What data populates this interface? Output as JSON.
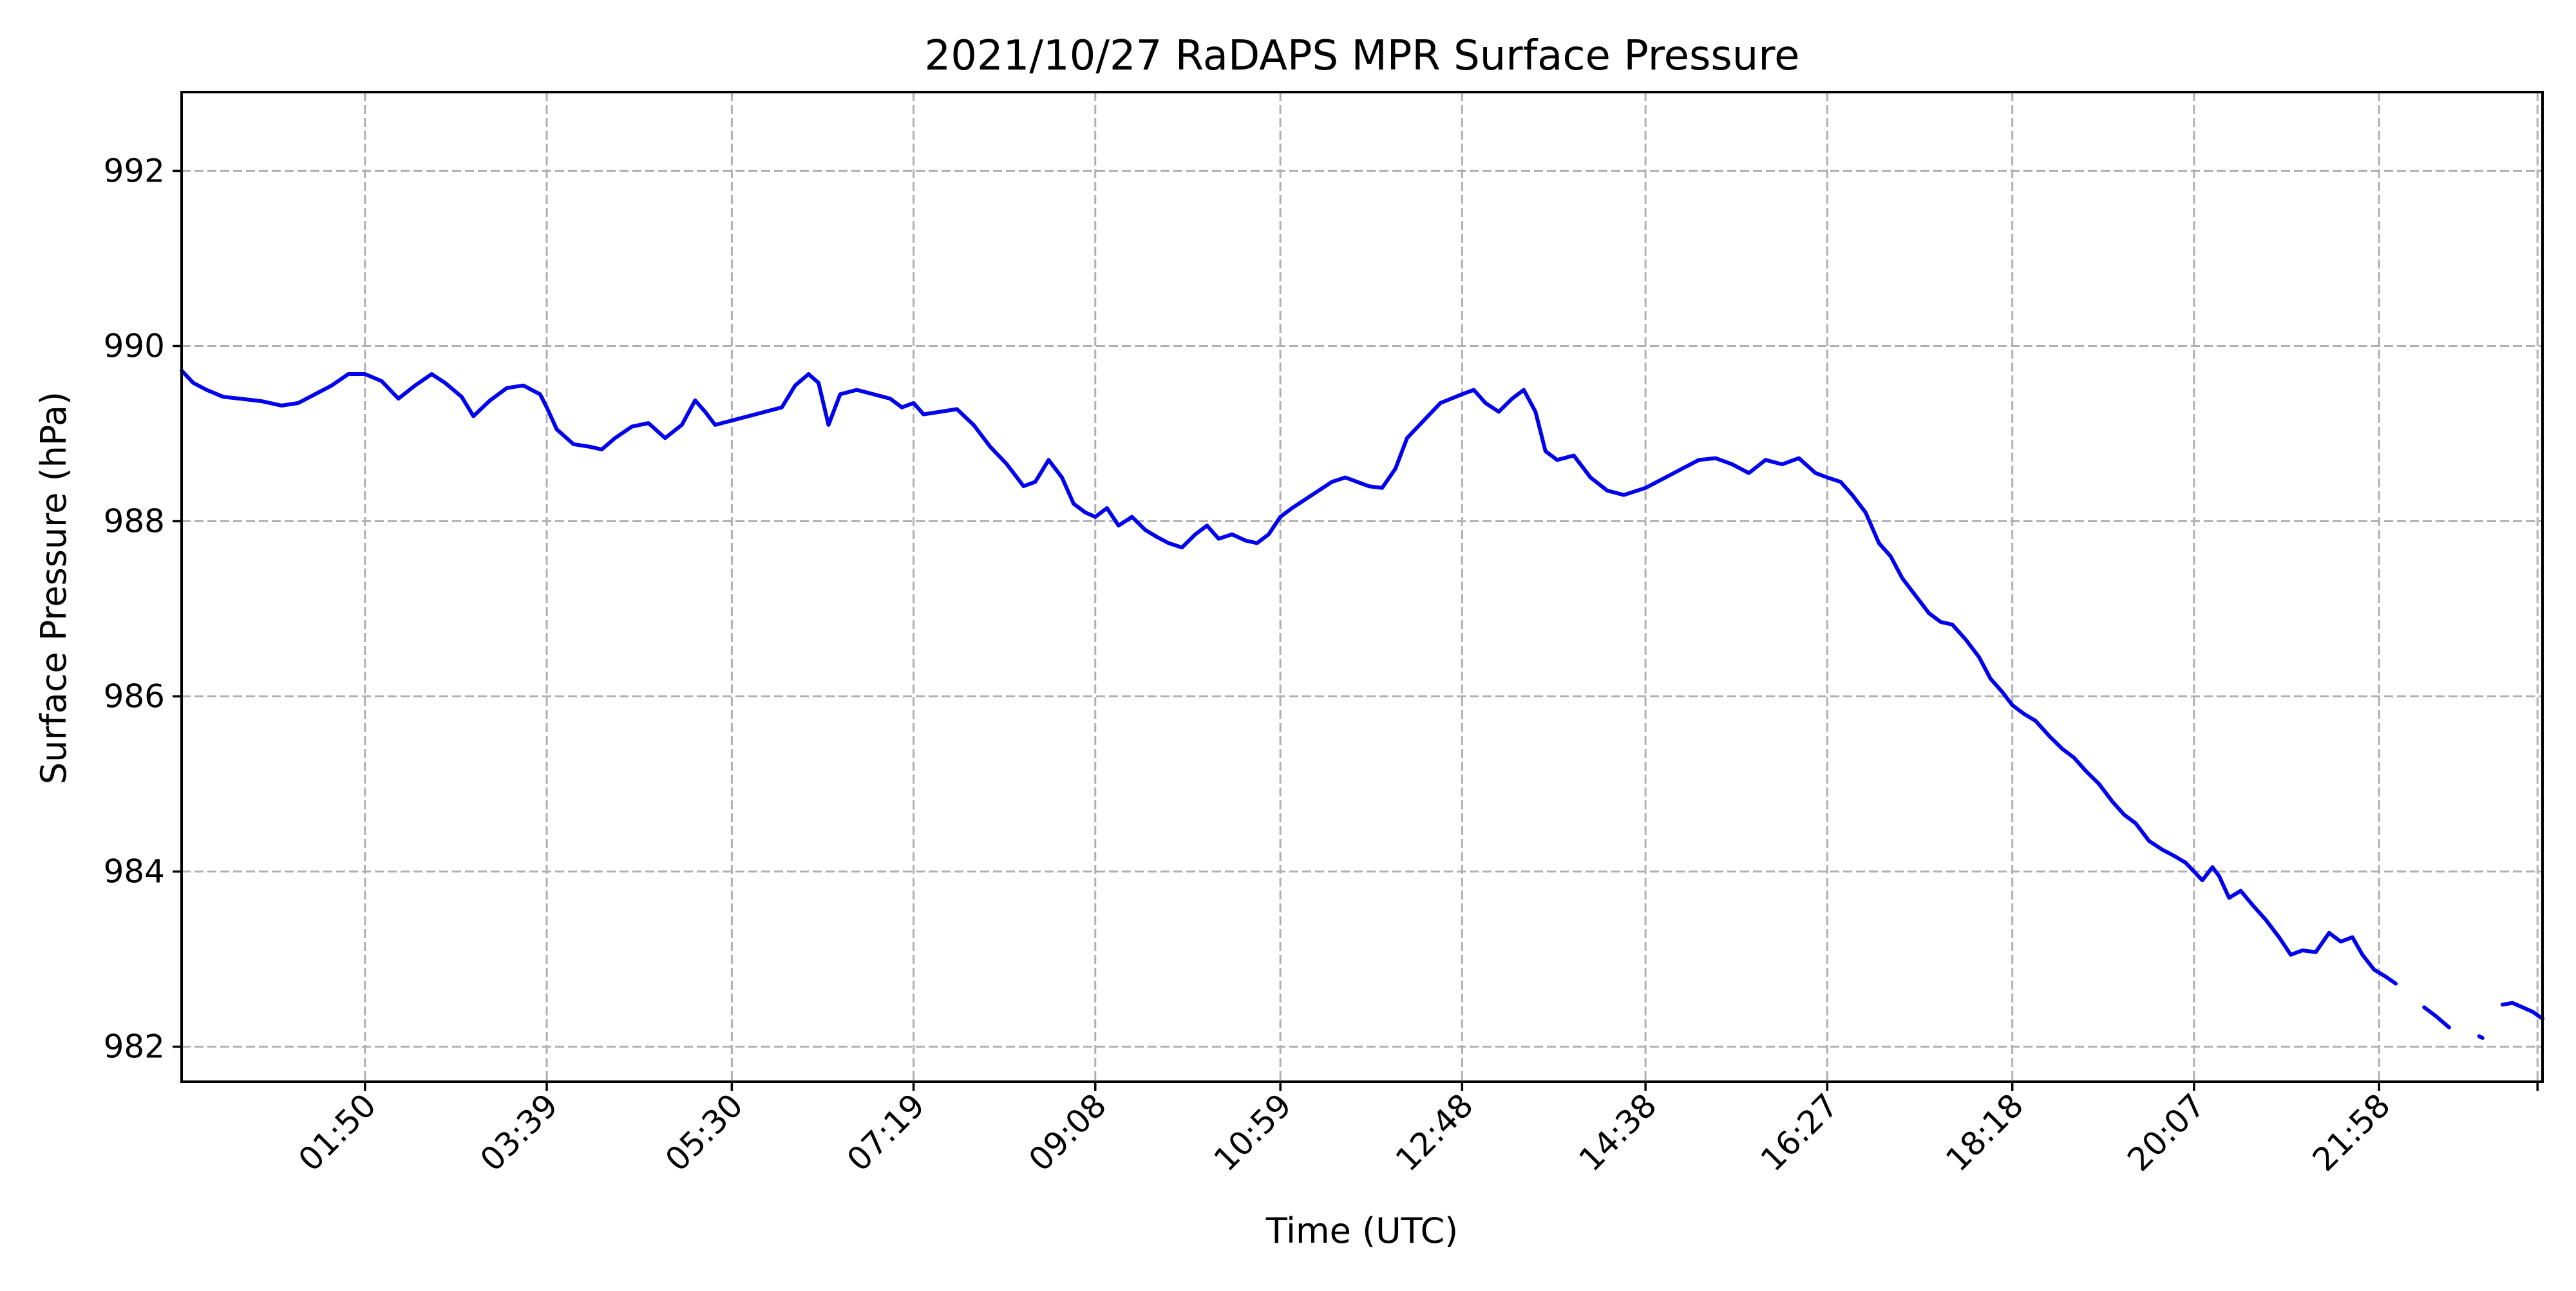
{
  "chart_data": {
    "type": "line",
    "title": "2021/10/27 RaDAPS MPR Surface Pressure",
    "xlabel": "Time (UTC)",
    "ylabel": "Surface Pressure (hPa)",
    "xlim": [
      "00:00",
      "23:36"
    ],
    "ylim": [
      981.6,
      992.9
    ],
    "x_ticks": [
      "01:50",
      "03:39",
      "05:30",
      "07:19",
      "09:08",
      "10:59",
      "12:48",
      "14:38",
      "16:27",
      "18:18",
      "20:07",
      "21:58"
    ],
    "y_ticks": [
      982,
      984,
      986,
      988,
      990,
      992
    ],
    "grid": true,
    "series": [
      {
        "color": "#0000ee",
        "points": [
          [
            "00:00",
            989.72
          ],
          [
            "00:07",
            989.58
          ],
          [
            "00:15",
            989.5
          ],
          [
            "00:25",
            989.42
          ],
          [
            "00:35",
            989.4
          ],
          [
            "00:48",
            989.37
          ],
          [
            "01:00",
            989.32
          ],
          [
            "01:10",
            989.35
          ],
          [
            "01:20",
            989.45
          ],
          [
            "01:30",
            989.55
          ],
          [
            "01:40",
            989.68
          ],
          [
            "01:50",
            989.68
          ],
          [
            "02:00",
            989.6
          ],
          [
            "02:10",
            989.4
          ],
          [
            "02:20",
            989.55
          ],
          [
            "02:30",
            989.68
          ],
          [
            "02:38",
            989.58
          ],
          [
            "02:48",
            989.42
          ],
          [
            "02:55",
            989.2
          ],
          [
            "03:05",
            989.38
          ],
          [
            "03:15",
            989.52
          ],
          [
            "03:25",
            989.55
          ],
          [
            "03:35",
            989.45
          ],
          [
            "03:39",
            989.3
          ],
          [
            "03:45",
            989.05
          ],
          [
            "03:55",
            988.88
          ],
          [
            "04:05",
            988.85
          ],
          [
            "04:12",
            988.82
          ],
          [
            "04:20",
            988.95
          ],
          [
            "04:30",
            989.08
          ],
          [
            "04:40",
            989.12
          ],
          [
            "04:50",
            988.95
          ],
          [
            "05:00",
            989.1
          ],
          [
            "05:08",
            989.38
          ],
          [
            "05:14",
            989.25
          ],
          [
            "05:20",
            989.1
          ],
          [
            "05:30",
            989.15
          ],
          [
            "05:40",
            989.2
          ],
          [
            "05:50",
            989.25
          ],
          [
            "06:00",
            989.3
          ],
          [
            "06:08",
            989.55
          ],
          [
            "06:16",
            989.68
          ],
          [
            "06:22",
            989.58
          ],
          [
            "06:28",
            989.1
          ],
          [
            "06:35",
            989.45
          ],
          [
            "06:45",
            989.5
          ],
          [
            "06:55",
            989.45
          ],
          [
            "07:05",
            989.4
          ],
          [
            "07:12",
            989.3
          ],
          [
            "07:19",
            989.35
          ],
          [
            "07:25",
            989.22
          ],
          [
            "07:35",
            989.25
          ],
          [
            "07:45",
            989.28
          ],
          [
            "07:55",
            989.1
          ],
          [
            "08:05",
            988.85
          ],
          [
            "08:15",
            988.65
          ],
          [
            "08:25",
            988.4
          ],
          [
            "08:32",
            988.45
          ],
          [
            "08:40",
            988.7
          ],
          [
            "08:48",
            988.5
          ],
          [
            "08:55",
            988.2
          ],
          [
            "09:02",
            988.1
          ],
          [
            "09:08",
            988.05
          ],
          [
            "09:15",
            988.15
          ],
          [
            "09:22",
            987.95
          ],
          [
            "09:30",
            988.05
          ],
          [
            "09:38",
            987.9
          ],
          [
            "09:45",
            987.82
          ],
          [
            "09:52",
            987.75
          ],
          [
            "10:00",
            987.7
          ],
          [
            "10:08",
            987.85
          ],
          [
            "10:15",
            987.95
          ],
          [
            "10:22",
            987.8
          ],
          [
            "10:30",
            987.85
          ],
          [
            "10:38",
            987.78
          ],
          [
            "10:45",
            987.75
          ],
          [
            "10:52",
            987.85
          ],
          [
            "10:59",
            988.05
          ],
          [
            "11:06",
            988.15
          ],
          [
            "11:14",
            988.25
          ],
          [
            "11:22",
            988.35
          ],
          [
            "11:30",
            988.45
          ],
          [
            "11:38",
            988.5
          ],
          [
            "11:45",
            988.45
          ],
          [
            "11:52",
            988.4
          ],
          [
            "12:00",
            988.38
          ],
          [
            "12:08",
            988.6
          ],
          [
            "12:15",
            988.95
          ],
          [
            "12:25",
            989.15
          ],
          [
            "12:35",
            989.35
          ],
          [
            "12:48",
            989.45
          ],
          [
            "12:55",
            989.5
          ],
          [
            "13:02",
            989.35
          ],
          [
            "13:10",
            989.25
          ],
          [
            "13:18",
            989.4
          ],
          [
            "13:25",
            989.5
          ],
          [
            "13:32",
            989.25
          ],
          [
            "13:38",
            988.8
          ],
          [
            "13:45",
            988.7
          ],
          [
            "13:55",
            988.75
          ],
          [
            "14:05",
            988.5
          ],
          [
            "14:15",
            988.35
          ],
          [
            "14:25",
            988.3
          ],
          [
            "14:38",
            988.38
          ],
          [
            "14:50",
            988.5
          ],
          [
            "15:00",
            988.6
          ],
          [
            "15:10",
            988.7
          ],
          [
            "15:20",
            988.72
          ],
          [
            "15:30",
            988.65
          ],
          [
            "15:40",
            988.55
          ],
          [
            "15:50",
            988.7
          ],
          [
            "16:00",
            988.65
          ],
          [
            "16:10",
            988.72
          ],
          [
            "16:20",
            988.55
          ],
          [
            "16:27",
            988.5
          ],
          [
            "16:35",
            988.45
          ],
          [
            "16:42",
            988.3
          ],
          [
            "16:50",
            988.1
          ],
          [
            "16:58",
            987.75
          ],
          [
            "17:05",
            987.6
          ],
          [
            "17:12",
            987.35
          ],
          [
            "17:20",
            987.15
          ],
          [
            "17:28",
            986.95
          ],
          [
            "17:35",
            986.85
          ],
          [
            "17:42",
            986.82
          ],
          [
            "17:50",
            986.65
          ],
          [
            "17:58",
            986.45
          ],
          [
            "18:05",
            986.2
          ],
          [
            "18:12",
            986.05
          ],
          [
            "18:18",
            985.9
          ],
          [
            "18:25",
            985.8
          ],
          [
            "18:32",
            985.72
          ],
          [
            "18:40",
            985.55
          ],
          [
            "18:48",
            985.4
          ],
          [
            "18:55",
            985.3
          ],
          [
            "19:02",
            985.15
          ],
          [
            "19:10",
            985.0
          ],
          [
            "19:18",
            984.8
          ],
          [
            "19:25",
            984.65
          ],
          [
            "19:32",
            984.55
          ],
          [
            "19:40",
            984.35
          ],
          [
            "19:48",
            984.25
          ],
          [
            "19:55",
            984.18
          ],
          [
            "20:02",
            984.1
          ],
          [
            "20:07",
            984.0
          ],
          [
            "20:12",
            983.9
          ],
          [
            "20:18",
            984.05
          ],
          [
            "20:22",
            983.95
          ],
          [
            "20:28",
            983.7
          ],
          [
            "20:35",
            983.78
          ],
          [
            "20:42",
            983.62
          ],
          [
            "20:50",
            983.45
          ],
          [
            "20:58",
            983.25
          ],
          [
            "21:05",
            983.05
          ],
          [
            "21:12",
            983.1
          ],
          [
            "21:20",
            983.08
          ],
          [
            "21:28",
            983.3
          ],
          [
            "21:35",
            983.2
          ],
          [
            "21:42",
            983.25
          ],
          [
            "21:48",
            983.05
          ],
          [
            "21:55",
            982.88
          ],
          [
            "22:02",
            982.8
          ],
          [
            "22:08",
            982.72
          ]
        ],
        "segments_after_gap": [
          [
            [
              "22:25",
              982.45
            ],
            [
              "22:32",
              982.35
            ],
            [
              "22:40",
              982.22
            ]
          ],
          [
            [
              "22:58",
              982.12
            ],
            [
              "23:00",
              982.1
            ]
          ],
          [
            [
              "23:12",
              982.48
            ],
            [
              "23:18",
              982.5
            ],
            [
              "23:24",
              982.45
            ],
            [
              "23:30",
              982.4
            ],
            [
              "23:36",
              982.32
            ]
          ]
        ]
      }
    ]
  }
}
